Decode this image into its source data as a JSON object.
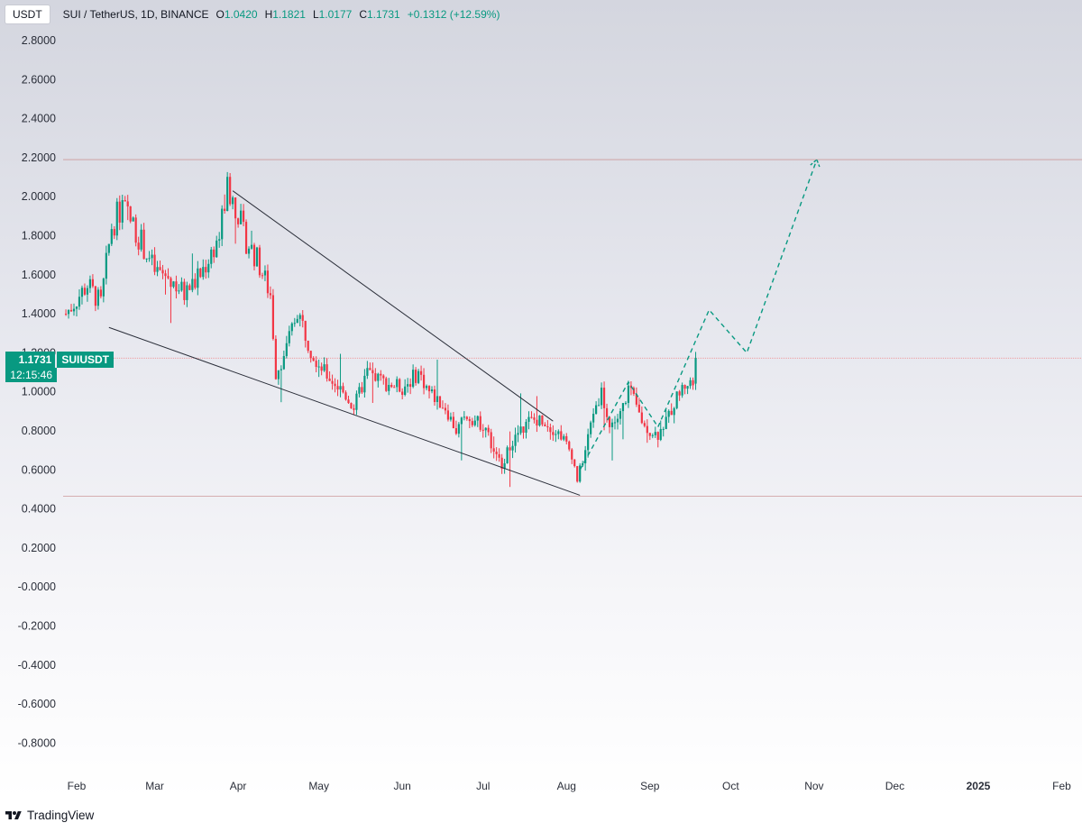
{
  "header": {
    "currency": "USDT",
    "title": "SUI / TetherUS, 1D, BINANCE",
    "open_key": "O",
    "open": "1.0420",
    "high_key": "H",
    "high": "1.1821",
    "low_key": "L",
    "low": "1.0177",
    "close_key": "C",
    "close": "1.1731",
    "change": "+0.1312 (+12.59%)"
  },
  "price_badge": {
    "price": "1.1731",
    "symbol": "SUIUSDT",
    "timer": "12:15:46"
  },
  "footer": {
    "brand": "TradingView"
  },
  "colors": {
    "up": "#089981",
    "down": "#f23645",
    "grid_line": "#e08080"
  },
  "chart_data": {
    "type": "candlestick",
    "title": "SUI / TetherUS, 1D, BINANCE",
    "ylim": [
      -0.9,
      2.9
    ],
    "y_ticks": [
      "2.8000",
      "2.6000",
      "2.4000",
      "2.2000",
      "2.0000",
      "1.8000",
      "1.6000",
      "1.4000",
      "1.2000",
      "1.0000",
      "0.8000",
      "0.6000",
      "0.4000",
      "0.2000",
      "-0.0000",
      "-0.2000",
      "-0.4000",
      "-0.6000",
      "-0.8000"
    ],
    "x_ticks": [
      {
        "label": "Feb",
        "date": "2024-02-01"
      },
      {
        "label": "Mar",
        "date": "2024-03-01"
      },
      {
        "label": "Apr",
        "date": "2024-04-01"
      },
      {
        "label": "May",
        "date": "2024-05-01"
      },
      {
        "label": "Jun",
        "date": "2024-06-01"
      },
      {
        "label": "Jul",
        "date": "2024-07-01"
      },
      {
        "label": "Aug",
        "date": "2024-08-01"
      },
      {
        "label": "Sep",
        "date": "2024-09-01"
      },
      {
        "label": "Oct",
        "date": "2024-10-01"
      },
      {
        "label": "Nov",
        "date": "2024-11-01"
      },
      {
        "label": "Dec",
        "date": "2024-12-01"
      },
      {
        "label": "2025",
        "date": "2025-01-01",
        "bold": true
      },
      {
        "label": "Feb",
        "date": "2025-02-01"
      }
    ],
    "grid": false,
    "candle_start": "2024-01-28",
    "candle_close_path": [
      [
        "2024-01-28",
        1.4
      ],
      [
        "2024-02-05",
        1.55
      ],
      [
        "2024-02-10",
        1.45
      ],
      [
        "2024-02-14",
        1.85
      ],
      [
        "2024-02-18",
        1.95
      ],
      [
        "2024-02-24",
        1.8
      ],
      [
        "2024-03-01",
        1.62
      ],
      [
        "2024-03-07",
        1.58
      ],
      [
        "2024-03-12",
        1.5
      ],
      [
        "2024-03-18",
        1.6
      ],
      [
        "2024-03-25",
        1.8
      ],
      [
        "2024-03-28",
        2.05
      ],
      [
        "2024-04-01",
        1.92
      ],
      [
        "2024-04-03",
        1.8
      ],
      [
        "2024-04-08",
        1.68
      ],
      [
        "2024-04-13",
        1.5
      ],
      [
        "2024-04-15",
        1.1
      ],
      [
        "2024-04-19",
        1.22
      ],
      [
        "2024-04-23",
        1.42
      ],
      [
        "2024-04-28",
        1.22
      ],
      [
        "2024-05-03",
        1.1
      ],
      [
        "2024-05-10",
        1.0
      ],
      [
        "2024-05-14",
        0.92
      ],
      [
        "2024-05-19",
        1.1
      ],
      [
        "2024-05-25",
        1.05
      ],
      [
        "2024-06-01",
        1.02
      ],
      [
        "2024-06-07",
        1.1
      ],
      [
        "2024-06-11",
        1.0
      ],
      [
        "2024-06-17",
        0.92
      ],
      [
        "2024-06-21",
        0.8
      ],
      [
        "2024-06-25",
        0.88
      ],
      [
        "2024-07-02",
        0.82
      ],
      [
        "2024-07-05",
        0.68
      ],
      [
        "2024-07-08",
        0.63
      ],
      [
        "2024-07-12",
        0.75
      ],
      [
        "2024-07-18",
        0.85
      ],
      [
        "2024-07-23",
        0.86
      ],
      [
        "2024-07-26",
        0.82
      ],
      [
        "2024-07-30",
        0.78
      ],
      [
        "2024-08-03",
        0.68
      ],
      [
        "2024-08-05",
        0.55
      ],
      [
        "2024-08-08",
        0.7
      ],
      [
        "2024-08-11",
        0.9
      ],
      [
        "2024-08-14",
        1.0
      ],
      [
        "2024-08-17",
        0.82
      ],
      [
        "2024-08-21",
        0.88
      ],
      [
        "2024-08-24",
        1.02
      ],
      [
        "2024-08-27",
        0.92
      ],
      [
        "2024-08-30",
        0.82
      ],
      [
        "2024-09-04",
        0.78
      ],
      [
        "2024-09-08",
        0.88
      ],
      [
        "2024-09-12",
        1.0
      ],
      [
        "2024-09-15",
        1.05
      ],
      [
        "2024-09-17",
        1.04
      ],
      [
        "2024-09-18",
        1.1731
      ]
    ],
    "horizontal_lines": [
      2.19,
      0.465,
      1.1731
    ],
    "drawings": {
      "upper_trendline": [
        [
          "2024-03-30",
          2.03
        ],
        [
          "2024-07-27",
          0.85
        ]
      ],
      "lower_trendline": [
        [
          "2024-02-13",
          1.33
        ],
        [
          "2024-08-06",
          0.47
        ]
      ],
      "projection_path": [
        [
          "2024-08-06",
          0.6
        ],
        [
          "2024-08-24",
          1.05
        ],
        [
          "2024-09-04",
          0.82
        ],
        [
          "2024-09-23",
          1.42
        ],
        [
          "2024-10-07",
          1.2
        ],
        [
          "2024-11-02",
          2.19
        ]
      ]
    }
  }
}
